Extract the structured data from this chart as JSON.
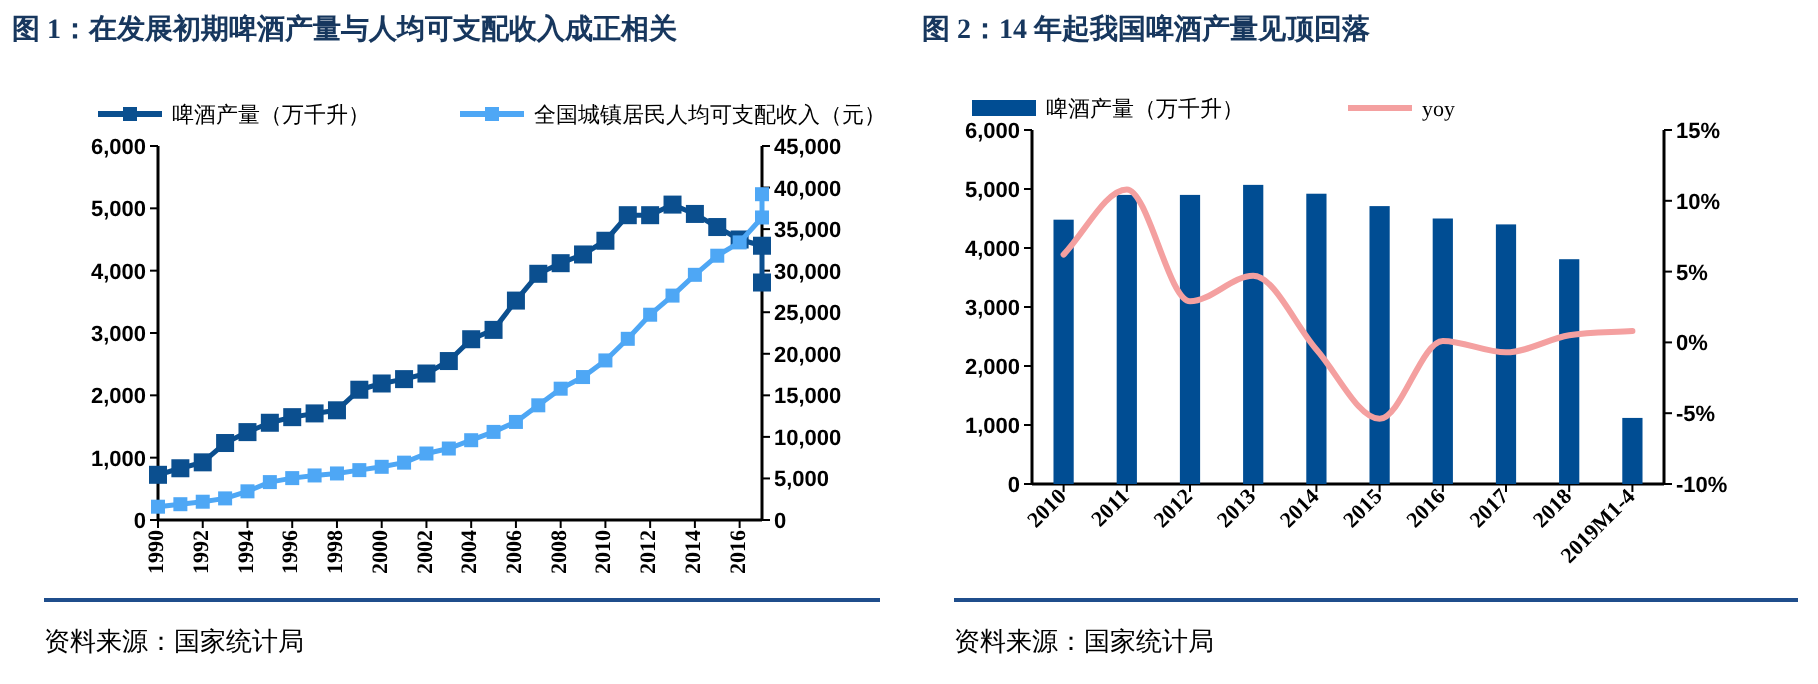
{
  "chart_data": [
    {
      "type": "line",
      "title": "图 1：在发展初期啤酒产量与人均可支配收入成正相关",
      "marker": "square",
      "line_style": "solid",
      "grid": false,
      "legend": "top",
      "xlim": [
        1990,
        2017
      ],
      "xticks": [
        1990,
        1992,
        1994,
        1996,
        1998,
        2000,
        2002,
        2004,
        2006,
        2008,
        2010,
        2012,
        2014,
        2016
      ],
      "ylim": [
        0,
        6000
      ],
      "yticks": [
        0,
        {
          "value": 1000,
          "label": "1,000"
        },
        {
          "value": 2000,
          "label": "2,000"
        },
        {
          "value": 3000,
          "label": "3,000"
        },
        {
          "value": 4000,
          "label": "4,000"
        },
        {
          "value": 5000,
          "label": "5,000"
        },
        {
          "value": 6000,
          "label": "6,000"
        }
      ],
      "y2lim": [
        0,
        45000
      ],
      "y2ticks": [
        0,
        {
          "value": 5000,
          "label": "5,000"
        },
        {
          "value": 10000,
          "label": "10,000"
        },
        {
          "value": 15000,
          "label": "15,000"
        },
        {
          "value": 20000,
          "label": "20,000"
        },
        {
          "value": 25000,
          "label": "25,000"
        },
        {
          "value": 30000,
          "label": "30,000"
        },
        {
          "value": 35000,
          "label": "35,000"
        },
        {
          "value": 40000,
          "label": "40,000"
        },
        {
          "value": 45000,
          "label": "45,000"
        }
      ],
      "series": [
        {
          "name": "啤酒产量（万千升）",
          "color": "#0b4f8f",
          "x": [
            1990,
            1991,
            1992,
            1993,
            1994,
            1995,
            1996,
            1997,
            1998,
            1999,
            2000,
            2001,
            2002,
            2003,
            2004,
            2005,
            2006,
            2007,
            2008,
            2009,
            2010,
            2011,
            2012,
            2013,
            2014,
            2015,
            2016,
            2017,
            2017
          ],
          "values": [
            725,
            830,
            925,
            1235,
            1410,
            1560,
            1650,
            1710,
            1760,
            2090,
            2190,
            2260,
            2350,
            2550,
            2900,
            3050,
            3520,
            3950,
            4120,
            4260,
            4480,
            4890,
            4890,
            5060,
            4910,
            4700,
            4500,
            4400,
            3810
          ]
        },
        {
          "name": "全国城镇居民人均可支配收入（元）",
          "color": "#4ea7f5",
          "axis": "y2",
          "x": [
            1990,
            1991,
            1992,
            1993,
            1994,
            1995,
            1996,
            1997,
            1998,
            1999,
            2000,
            2001,
            2002,
            2003,
            2004,
            2005,
            2006,
            2007,
            2008,
            2009,
            2010,
            2011,
            2012,
            2013,
            2014,
            2015,
            2016,
            2017,
            2017
          ],
          "values": [
            1600,
            1900,
            2200,
            2600,
            3450,
            4560,
            5040,
            5360,
            5600,
            6000,
            6400,
            6900,
            8000,
            8600,
            9600,
            10600,
            11800,
            13800,
            15800,
            17200,
            19200,
            21800,
            24700,
            27000,
            29500,
            31800,
            33400,
            36400,
            39200
          ]
        }
      ],
      "annotations": [
        "资料来源：国家统计局"
      ]
    },
    {
      "type": "bar",
      "title": "图 2：14 年起我国啤酒产量见顶回落",
      "marker": "none",
      "line_style": "solid",
      "grid": false,
      "legend": "top",
      "categories": [
        "2010",
        "2011",
        "2012",
        "2013",
        "2014",
        "2015",
        "2016",
        "2017",
        "2018",
        "2019M1-4"
      ],
      "ylim": [
        0,
        6000
      ],
      "yticks": [
        0,
        {
          "value": 1000,
          "label": "1,000"
        },
        {
          "value": 2000,
          "label": "2,000"
        },
        {
          "value": 3000,
          "label": "3,000"
        },
        {
          "value": 4000,
          "label": "4,000"
        },
        {
          "value": 5000,
          "label": "5,000"
        },
        {
          "value": 6000,
          "label": "6,000"
        }
      ],
      "y2lim": [
        -10,
        15
      ],
      "y2ticks": [
        {
          "value": -10,
          "label": "-10%"
        },
        {
          "value": -5,
          "label": "-5%"
        },
        {
          "value": 0,
          "label": "0%"
        },
        {
          "value": 5,
          "label": "5%"
        },
        {
          "value": 10,
          "label": "10%"
        },
        {
          "value": 15,
          "label": "15%"
        }
      ],
      "series": [
        {
          "name": "啤酒产量（万千升）",
          "color": "#004d93",
          "values": [
            4480,
            4900,
            4900,
            5070,
            4920,
            4710,
            4500,
            4400,
            3810,
            1120
          ]
        },
        {
          "name": "yoy",
          "type": "line",
          "axis": "y2",
          "color": "#f4a0a0",
          "values": [
            6.2,
            10.8,
            2.9,
            4.7,
            -0.5,
            -5.4,
            0.1,
            -0.7,
            0.5,
            0.8
          ]
        }
      ],
      "annotations": [
        "资料来源：国家统计局"
      ]
    }
  ]
}
